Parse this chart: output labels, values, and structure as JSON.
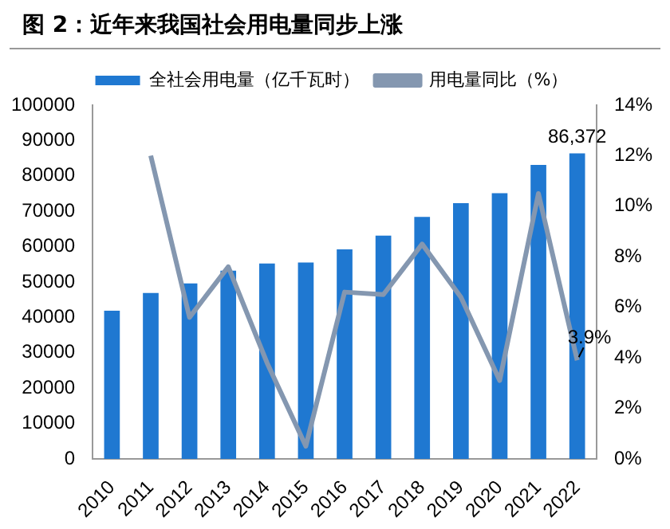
{
  "chart_data": {
    "type": "bar",
    "title": "图 2：近年来我国社会用电量同步上涨",
    "categories": [
      "2010",
      "2011",
      "2012",
      "2013",
      "2014",
      "2015",
      "2016",
      "2017",
      "2018",
      "2019",
      "2020",
      "2021",
      "2022"
    ],
    "series": [
      {
        "name": "全社会用电量（亿千瓦时）",
        "color": "#1f78d1",
        "values": [
          41900,
          46900,
          49600,
          53200,
          55200,
          55500,
          59200,
          63100,
          68400,
          72300,
          75100,
          83100,
          86372
        ],
        "value_labels": [
          null,
          null,
          null,
          null,
          null,
          null,
          null,
          null,
          null,
          null,
          null,
          null,
          "86,372"
        ]
      },
      {
        "name": "用电量同比（%）",
        "type": "line",
        "axis": "y2",
        "color": "#8497b0",
        "values": [
          null,
          12.0,
          5.6,
          7.6,
          3.8,
          0.5,
          6.6,
          6.5,
          8.5,
          6.4,
          3.1,
          10.5,
          3.9
        ],
        "value_labels": [
          null,
          null,
          null,
          null,
          null,
          null,
          null,
          null,
          null,
          null,
          null,
          null,
          "3.9%"
        ]
      }
    ],
    "ylim": [
      0,
      100000
    ],
    "yticks": [
      0,
      10000,
      20000,
      30000,
      40000,
      50000,
      60000,
      70000,
      80000,
      90000,
      100000
    ],
    "y2lim": [
      0,
      14
    ],
    "y2ticks": [
      {
        "value": 0,
        "label": "0%"
      },
      {
        "value": 2,
        "label": "2%"
      },
      {
        "value": 4,
        "label": "4%"
      },
      {
        "value": 6,
        "label": "6%"
      },
      {
        "value": 8,
        "label": "8%"
      },
      {
        "value": 10,
        "label": "10%"
      },
      {
        "value": 12,
        "label": "12%"
      },
      {
        "value": 14,
        "label": "14%"
      }
    ],
    "legend": "top",
    "grid": false,
    "marker": "none",
    "line_style": "solid"
  }
}
